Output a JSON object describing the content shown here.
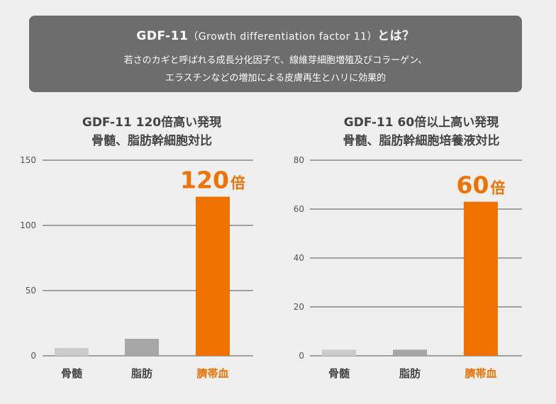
{
  "header": {
    "title_main": "GDF-11",
    "title_paren": "（Growth differentiation factor 11）",
    "title_tail": "とは？",
    "line1": "若さのカギと呼ばれる成長分化因子で、線維芽細胞増殖及びコラーゲン、",
    "line2": "エラスチンなどの増加による皮膚再生とハリに効果的"
  },
  "colors": {
    "highlight": "#ee7300",
    "bar_light": "#cccccc",
    "bar_mid": "#a6a6a6",
    "label_dark": "#444444",
    "banner": "#6d6d6d"
  },
  "chart_data": [
    {
      "type": "bar",
      "title_line1": "GDF-11 120倍高い発現",
      "title_line2": "骨髄、脂肪幹細胞対比",
      "categories": [
        "骨髄",
        "脂肪",
        "臍帯血"
      ],
      "values": [
        6,
        13,
        122
      ],
      "ylim": [
        0,
        150
      ],
      "yticks": [
        0,
        50,
        100,
        150
      ],
      "callout_number": "120",
      "callout_unit": "倍",
      "grid": true,
      "xlabel": "",
      "ylabel": ""
    },
    {
      "type": "bar",
      "title_line1": "GDF-11 60倍以上高い発現",
      "title_line2": "骨髄、脂肪幹細胞培養液対比",
      "categories": [
        "骨髄",
        "脂肪",
        "臍帯血"
      ],
      "values": [
        2.5,
        2.5,
        63
      ],
      "ylim": [
        0,
        80
      ],
      "yticks": [
        0,
        20,
        40,
        60,
        80
      ],
      "callout_number": "60",
      "callout_unit": "倍",
      "grid": true,
      "xlabel": "",
      "ylabel": ""
    }
  ]
}
